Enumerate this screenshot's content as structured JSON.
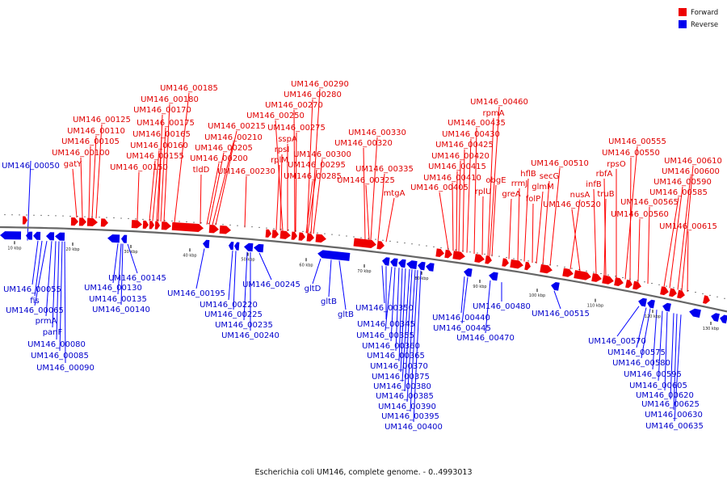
{
  "title": "Escherichia coli UM146, complete genome. - 0..4993013",
  "legend": [
    {
      "label": "Forward",
      "color": "#ee0000"
    },
    {
      "label": "Reverse",
      "color": "#0000ee"
    }
  ],
  "colors": {
    "forward_arrow": "#ee0000",
    "reverse_arrow": "#0000ee",
    "forward_line": "#ff0000",
    "reverse_line": "#0000ff",
    "backbone": "#666666"
  },
  "scale_ticks": [
    "10 kbp",
    "20 kbp",
    "30 kbp",
    "40 kbp",
    "50 kbp",
    "60 kbp",
    "70 kbp",
    "80 kbp",
    "90 kbp",
    "100 kbp",
    "110 kbp",
    "120 kbp",
    "130 kbp"
  ],
  "forward_labels": [
    "UM146_00185",
    "UM146_00180",
    "UM146_00170",
    "UM146_00175",
    "UM146_00125",
    "UM146_00110",
    "UM146_00165",
    "UM146_00105",
    "UM146_00160",
    "UM146_00100",
    "UM146_00155",
    "gatY",
    "UM146_00150",
    "tldD",
    "UM146_00215",
    "UM146_00210",
    "UM146_00205",
    "UM146_00200",
    "UM146_00230",
    "UM146_00290",
    "UM146_00280",
    "UM146_00270",
    "UM146_00250",
    "UM146_00275",
    "sspA",
    "rpsI",
    "rplM",
    "UM146_00300",
    "UM146_00295",
    "UM146_00285",
    "UM146_00330",
    "UM146_00320",
    "UM146_00335",
    "UM146_00325",
    "mtgA",
    "UM146_00460",
    "rpmA",
    "UM146_00435",
    "UM146_00430",
    "UM146_00425",
    "UM146_00420",
    "UM146_00415",
    "UM146_00410",
    "UM146_00405",
    "rplU",
    "obgE",
    "greA",
    "hflB",
    "rrmJ",
    "glmM",
    "folP",
    "secG",
    "UM146_00510",
    "nusA",
    "UM146_00520",
    "infB",
    "rbfA",
    "truB",
    "rpsO",
    "UM146_00555",
    "UM146_00550",
    "UM146_00560",
    "UM146_00565",
    "UM146_00585",
    "UM146_00590",
    "UM146_00600",
    "UM146_00610",
    "UM146_00615"
  ],
  "reverse_labels": [
    "UM146_00050",
    "UM146_00055",
    "fis",
    "UM146_00065",
    "prmA",
    "panF",
    "UM146_00080",
    "UM146_00085",
    "UM146_00090",
    "UM146_00145",
    "UM146_00130",
    "UM146_00135",
    "UM146_00140",
    "UM146_00195",
    "UM146_00220",
    "UM146_00225",
    "UM146_00235",
    "UM146_00240",
    "UM146_00245",
    "gltD",
    "gltB",
    "gltB",
    "UM146_00350",
    "UM146_00345",
    "UM146_00355",
    "UM146_00360",
    "UM146_00365",
    "UM146_00370",
    "UM146_00375",
    "UM146_00380",
    "UM146_00385",
    "UM146_00390",
    "UM146_00395",
    "UM146_00400",
    "UM146_00440",
    "UM146_00445",
    "UM146_00470",
    "UM146_00480",
    "UM146_00515",
    "UM146_00570",
    "UM146_00575",
    "UM146_00580",
    "UM146_00595",
    "UM146_00605",
    "UM146_00620",
    "UM146_00625",
    "UM146_00630",
    "UM146_00635"
  ]
}
